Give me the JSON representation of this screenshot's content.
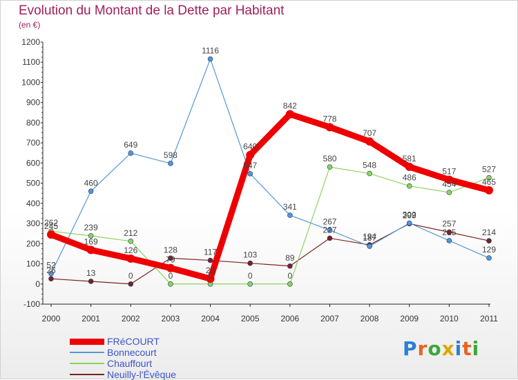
{
  "header": {
    "title": "Evolution du Montant de la Dette par Habitant",
    "subtitle": "(en €)"
  },
  "brand": {
    "letters": [
      "P",
      "r",
      "o",
      "x",
      "i",
      "t",
      "i"
    ],
    "colors": [
      "#2b7fd4",
      "#e8641c",
      "#3aa83a",
      "#d8a800",
      "#2b7fd4",
      "#e8641c",
      "#3aa83a"
    ]
  },
  "chart_data": {
    "type": "line",
    "title": "Evolution du Montant de la Dette par Habitant",
    "subtitle": "(en €)",
    "xlabel": "",
    "ylabel": "",
    "x": [
      "2000",
      "2001",
      "2002",
      "2003",
      "2004",
      "2005",
      "2006",
      "2007",
      "2008",
      "2009",
      "2010",
      "2011"
    ],
    "ylim": [
      -100,
      1200
    ],
    "yticks": [
      -100,
      0,
      100,
      200,
      300,
      400,
      500,
      600,
      700,
      800,
      900,
      1000,
      1100,
      1200
    ],
    "grid": false,
    "legend_position": "bottom-left",
    "series": [
      {
        "name": "FRéCOURT",
        "color": "#ee0000",
        "values": [
          245,
          169,
          126,
          79,
          26,
          640,
          842,
          778,
          707,
          581,
          517,
          465
        ],
        "labels": [
          "245",
          "169",
          "126",
          "79",
          "26",
          "640",
          "842",
          "778",
          "707",
          "581",
          "517",
          "465"
        ]
      },
      {
        "name": "Bonnecourt",
        "color": "#5596d6",
        "values": [
          52,
          460,
          649,
          598,
          1116,
          547,
          341,
          267,
          187,
          302,
          215,
          129
        ],
        "labels": [
          "52",
          "460",
          "649",
          "598",
          "1116",
          "547",
          "341",
          "267",
          "187",
          "302",
          "215",
          "129"
        ]
      },
      {
        "name": "Chauffourt",
        "color": "#8cd45a",
        "values": [
          262,
          239,
          212,
          0,
          0,
          0,
          0,
          580,
          548,
          486,
          454,
          527
        ],
        "labels": [
          "262",
          "239",
          "212",
          "0",
          "0",
          "0",
          "0",
          "580",
          "548",
          "486",
          "454",
          "527"
        ]
      },
      {
        "name": "Neuilly-l'Évêque",
        "color": "#7a2222",
        "values": [
          26,
          13,
          0,
          128,
          117,
          103,
          89,
          227,
          194,
          299,
          257,
          214
        ],
        "labels": [
          "26",
          "13",
          "0",
          "128",
          "117",
          "103",
          "89",
          "227",
          "194",
          "299",
          "257",
          "214"
        ]
      }
    ]
  }
}
